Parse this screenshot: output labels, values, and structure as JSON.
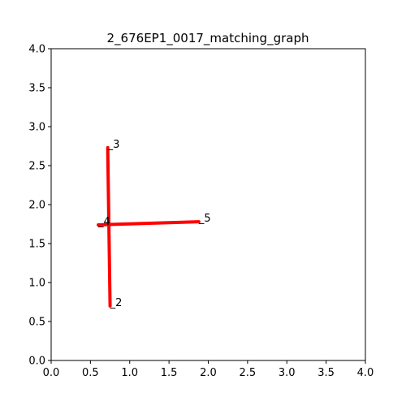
{
  "chart_data": {
    "type": "line",
    "title": "2_676EP1_0017_matching_graph",
    "xlabel": "",
    "ylabel": "",
    "xlim": [
      0.0,
      4.0
    ],
    "ylim": [
      0.0,
      4.0
    ],
    "xticks": [
      "0.0",
      "0.5",
      "1.0",
      "1.5",
      "2.0",
      "2.5",
      "3.0",
      "3.5",
      "4.0"
    ],
    "yticks": [
      "0.0",
      "0.5",
      "1.0",
      "1.5",
      "2.0",
      "2.5",
      "3.0",
      "3.5",
      "4.0"
    ],
    "grid": false,
    "line_color": "#ff0000",
    "nodes": [
      {
        "label": "2",
        "x": 0.75,
        "y": 0.7
      },
      {
        "label": "3",
        "x": 0.72,
        "y": 2.73
      },
      {
        "label": "4",
        "x": 0.6,
        "y": 1.74
      },
      {
        "label": "5",
        "x": 1.88,
        "y": 1.78
      }
    ],
    "edges": [
      {
        "x": [
          0.72,
          0.75
        ],
        "y": [
          2.73,
          0.7
        ]
      },
      {
        "x": [
          0.6,
          1.88
        ],
        "y": [
          1.74,
          1.78
        ]
      }
    ]
  }
}
